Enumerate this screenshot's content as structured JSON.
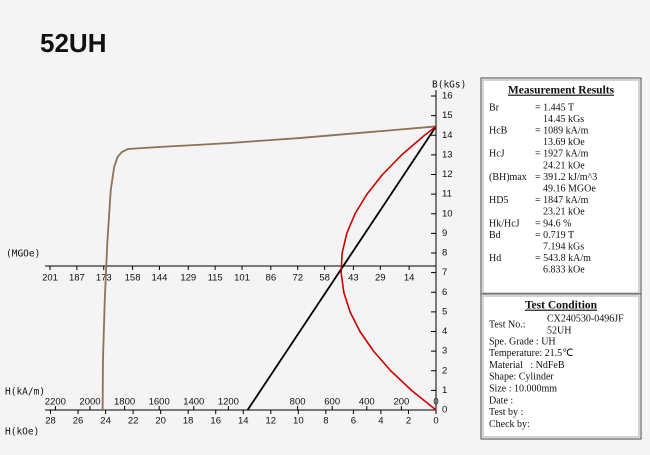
{
  "chart_data": {
    "type": "line",
    "title": "52UH",
    "y_label": "B(kGs)",
    "ylim": [
      0,
      16
    ],
    "yticks": [
      0,
      1,
      2,
      3,
      4,
      5,
      6,
      7,
      8,
      9,
      10,
      11,
      12,
      13,
      14,
      15,
      16
    ],
    "x_label": "H(kA/m)",
    "xlim": [
      2260,
      0
    ],
    "xticks": [
      2200,
      2000,
      1800,
      1600,
      1400,
      1200,
      800,
      600,
      400,
      200,
      0
    ],
    "x2_label": "H(kOe)",
    "x2lim": [
      28.4,
      0
    ],
    "x2ticks": [
      28,
      26,
      24,
      22,
      20,
      18,
      16,
      14,
      12,
      10,
      8,
      6,
      4,
      2,
      0
    ],
    "x3_label": "(MGOe)",
    "x3lim": [
      203.6,
      0
    ],
    "x3ticks": [
      201,
      187,
      173,
      158,
      144,
      129,
      115,
      101,
      86,
      72,
      58,
      43,
      29,
      14
    ],
    "series": [
      {
        "color": "#8b7355",
        "xaxis": "x",
        "x": [
          0,
          400,
          800,
          1200,
          1600,
          1780,
          1815,
          1840,
          1860,
          1880,
          1900,
          1915,
          1925,
          1927
        ],
        "values": [
          14.45,
          14.15,
          13.85,
          13.6,
          13.4,
          13.3,
          13.15,
          12.9,
          12.4,
          11.2,
          8.5,
          5.5,
          2.5,
          0
        ]
      },
      {
        "color": "#000000",
        "xaxis": "x",
        "x": [
          0,
          1089
        ],
        "values": [
          14.45,
          0
        ]
      },
      {
        "color": "#cc0000",
        "xaxis": "x3",
        "x": [
          0,
          12.74,
          23.59,
          32.54,
          39.6,
          44.76,
          48.03,
          49.41,
          48.89,
          46.47,
          42.16,
          35.95,
          27.85,
          17.86,
          5.97,
          0
        ],
        "values": [
          0,
          1,
          2,
          3,
          4,
          5,
          6,
          7,
          8,
          9,
          10,
          11,
          12,
          13,
          14,
          14.45
        ]
      }
    ]
  },
  "measurement": {
    "title": "Measurement Results",
    "rows": [
      {
        "label": "Br",
        "lines": [
          "= 1.445 T",
          "14.45 kGs"
        ]
      },
      {
        "label": "HcB",
        "lines": [
          "= 1089  kA/m",
          "13.69 kOe"
        ]
      },
      {
        "label": "HcJ",
        "lines": [
          "= 1927  kA/m",
          "24.21 kOe"
        ]
      },
      {
        "label": "(BH)max",
        "lines": [
          "= 391.2 kJ/m^3",
          "49.16 MGOe"
        ]
      },
      {
        "label": "HD5",
        "lines": [
          "= 1847  kA/m",
          "23.21 kOe"
        ]
      },
      {
        "label": "Hk/HcJ",
        "lines": [
          "= 94.6  %"
        ]
      },
      {
        "label": "Bd",
        "lines": [
          "= 0.719 T",
          "7.194 kGs"
        ]
      },
      {
        "label": "Hd",
        "lines": [
          "= 543.8 kA/m",
          "6.833 kOe"
        ]
      }
    ]
  },
  "test_condition": {
    "title": "Test Condition",
    "test_no_label": "Test No.:",
    "test_no": [
      "CX240530-0496JF",
      "52UH"
    ],
    "lines": [
      "Spe. Grade : UH",
      "Temperature: 21.5℃",
      "Material   : NdFeB",
      "Shape: Cylinder",
      "Size : 10.000mm",
      "Date :",
      "Test by :",
      "Check by:"
    ]
  }
}
